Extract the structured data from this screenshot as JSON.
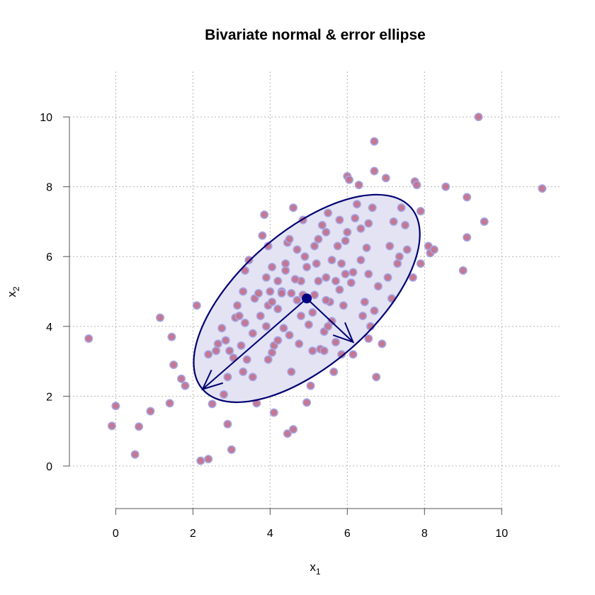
{
  "chart_data": {
    "type": "scatter",
    "title": "Bivariate normal & error ellipse",
    "xlabel": {
      "base": "x",
      "sub": "1"
    },
    "ylabel": {
      "base": "x",
      "sub": "2"
    },
    "xlim": [
      -1.2,
      11.5
    ],
    "ylim": [
      -1.3,
      11.3
    ],
    "x_ticks": [
      0,
      2,
      4,
      6,
      8,
      10
    ],
    "y_ticks": [
      0,
      2,
      4,
      6,
      8,
      10
    ],
    "grid": true,
    "colors": {
      "point_fill": "#c2718c",
      "point_stroke": "#a4a6e6",
      "ellipse_fill": "#e3e3f3",
      "ellipse_stroke": "#000073",
      "arrow": "#000073",
      "center": "#000080"
    },
    "ellipse": {
      "center": [
        4.95,
        4.8
      ],
      "major_axis_end": [
        2.25,
        2.2
      ],
      "minor_axis_end": [
        6.15,
        3.55
      ],
      "minor_semi_axis_length": 1.73
    },
    "points": [
      [
        -0.7,
        3.65
      ],
      [
        0.0,
        1.72
      ],
      [
        -0.1,
        1.15
      ],
      [
        0.5,
        0.33
      ],
      [
        0.6,
        1.13
      ],
      [
        0.9,
        1.57
      ],
      [
        1.15,
        4.25
      ],
      [
        1.4,
        1.8
      ],
      [
        1.45,
        3.7
      ],
      [
        1.5,
        2.9
      ],
      [
        1.7,
        2.5
      ],
      [
        1.8,
        2.3
      ],
      [
        2.1,
        4.6
      ],
      [
        2.2,
        0.15
      ],
      [
        2.4,
        0.2
      ],
      [
        2.5,
        1.78
      ],
      [
        2.9,
        1.2
      ],
      [
        3.0,
        0.47
      ],
      [
        2.8,
        2.05
      ],
      [
        2.65,
        3.5
      ],
      [
        2.4,
        3.2
      ],
      [
        2.6,
        3.3
      ],
      [
        2.75,
        3.95
      ],
      [
        2.95,
        3.3
      ],
      [
        2.85,
        3.6
      ],
      [
        3.05,
        3.1
      ],
      [
        3.25,
        3.45
      ],
      [
        3.1,
        4.25
      ],
      [
        3.2,
        4.3
      ],
      [
        3.35,
        4.1
      ],
      [
        3.15,
        4.6
      ],
      [
        3.3,
        5.0
      ],
      [
        3.35,
        5.6
      ],
      [
        3.45,
        5.9
      ],
      [
        3.55,
        3.8
      ],
      [
        3.6,
        4.8
      ],
      [
        3.65,
        1.8
      ],
      [
        3.7,
        4.95
      ],
      [
        3.8,
        6.6
      ],
      [
        3.85,
        7.2
      ],
      [
        3.95,
        6.3
      ],
      [
        3.75,
        4.3
      ],
      [
        3.9,
        4.0
      ],
      [
        3.95,
        4.6
      ],
      [
        4.0,
        5.0
      ],
      [
        4.05,
        5.7
      ],
      [
        4.05,
        3.25
      ],
      [
        4.1,
        1.53
      ],
      [
        4.2,
        4.5
      ],
      [
        4.3,
        5.0
      ],
      [
        4.35,
        3.95
      ],
      [
        4.4,
        5.6
      ],
      [
        4.45,
        6.4
      ],
      [
        4.5,
        6.5
      ],
      [
        4.55,
        4.95
      ],
      [
        4.55,
        2.7
      ],
      [
        4.45,
        0.93
      ],
      [
        4.6,
        1.05
      ],
      [
        4.6,
        7.4
      ],
      [
        4.7,
        6.2
      ],
      [
        4.7,
        4.75
      ],
      [
        4.75,
        3.5
      ],
      [
        4.8,
        4.3
      ],
      [
        4.8,
        5.3
      ],
      [
        4.85,
        7.05
      ],
      [
        4.9,
        6.0
      ],
      [
        4.95,
        5.7
      ],
      [
        4.95,
        1.82
      ],
      [
        5.05,
        2.3
      ],
      [
        5.1,
        3.3
      ],
      [
        5.1,
        4.4
      ],
      [
        5.15,
        4.9
      ],
      [
        5.2,
        5.8
      ],
      [
        5.25,
        6.5
      ],
      [
        5.3,
        3.35
      ],
      [
        5.35,
        6.9
      ],
      [
        5.4,
        3.85
      ],
      [
        5.45,
        5.4
      ],
      [
        5.5,
        7.25
      ],
      [
        5.55,
        4.7
      ],
      [
        5.6,
        4.15
      ],
      [
        5.6,
        5.9
      ],
      [
        5.65,
        2.7
      ],
      [
        5.7,
        3.55
      ],
      [
        5.75,
        6.3
      ],
      [
        5.8,
        5.05
      ],
      [
        5.85,
        3.2
      ],
      [
        5.9,
        4.6
      ],
      [
        5.95,
        5.5
      ],
      [
        6.0,
        6.7
      ],
      [
        6.0,
        8.3
      ],
      [
        6.05,
        8.2
      ],
      [
        6.1,
        5.25
      ],
      [
        6.15,
        3.2
      ],
      [
        6.2,
        7.1
      ],
      [
        6.25,
        7.5
      ],
      [
        6.3,
        8.05
      ],
      [
        6.35,
        5.9
      ],
      [
        6.4,
        4.3
      ],
      [
        6.45,
        4.7
      ],
      [
        6.5,
        6.25
      ],
      [
        6.55,
        3.65
      ],
      [
        6.6,
        4.0
      ],
      [
        6.65,
        7.4
      ],
      [
        6.7,
        4.45
      ],
      [
        6.7,
        8.45
      ],
      [
        6.7,
        9.3
      ],
      [
        6.75,
        2.55
      ],
      [
        6.8,
        5.15
      ],
      [
        6.9,
        3.5
      ],
      [
        7.0,
        8.25
      ],
      [
        7.05,
        5.4
      ],
      [
        7.1,
        6.3
      ],
      [
        7.15,
        4.8
      ],
      [
        7.2,
        7.0
      ],
      [
        7.3,
        5.8
      ],
      [
        7.35,
        6.0
      ],
      [
        7.4,
        7.4
      ],
      [
        7.5,
        6.9
      ],
      [
        7.55,
        6.2
      ],
      [
        7.7,
        5.4
      ],
      [
        7.75,
        8.15
      ],
      [
        7.8,
        8.05
      ],
      [
        7.9,
        7.3
      ],
      [
        7.9,
        5.8
      ],
      [
        8.1,
        6.3
      ],
      [
        8.15,
        6.1
      ],
      [
        8.25,
        6.2
      ],
      [
        8.55,
        8.0
      ],
      [
        9.0,
        5.6
      ],
      [
        9.1,
        7.7
      ],
      [
        9.1,
        6.55
      ],
      [
        9.4,
        10.0
      ],
      [
        9.55,
        7.0
      ],
      [
        11.05,
        7.95
      ],
      [
        5.45,
        4.75
      ],
      [
        5.25,
        5.3
      ],
      [
        4.65,
        5.35
      ],
      [
        5.0,
        4.05
      ],
      [
        5.4,
        3.3
      ],
      [
        5.5,
        4.0
      ],
      [
        6.15,
        5.55
      ],
      [
        5.7,
        5.3
      ],
      [
        4.3,
        4.95
      ],
      [
        4.85,
        4.9
      ],
      [
        3.95,
        3.05
      ],
      [
        4.1,
        3.45
      ],
      [
        3.9,
        5.4
      ],
      [
        4.2,
        5.3
      ],
      [
        4.05,
        4.7
      ],
      [
        6.35,
        6.8
      ],
      [
        5.95,
        6.45
      ],
      [
        6.55,
        6.95
      ],
      [
        5.8,
        7.05
      ],
      [
        6.55,
        5.5
      ],
      [
        5.45,
        6.7
      ],
      [
        5.15,
        6.3
      ],
      [
        4.5,
        3.75
      ],
      [
        4.2,
        3.6
      ],
      [
        5.85,
        5.8
      ],
      [
        3.4,
        3.05
      ],
      [
        3.55,
        2.55
      ],
      [
        2.9,
        2.55
      ],
      [
        3.3,
        2.7
      ],
      [
        4.4,
        5.8
      ]
    ]
  }
}
